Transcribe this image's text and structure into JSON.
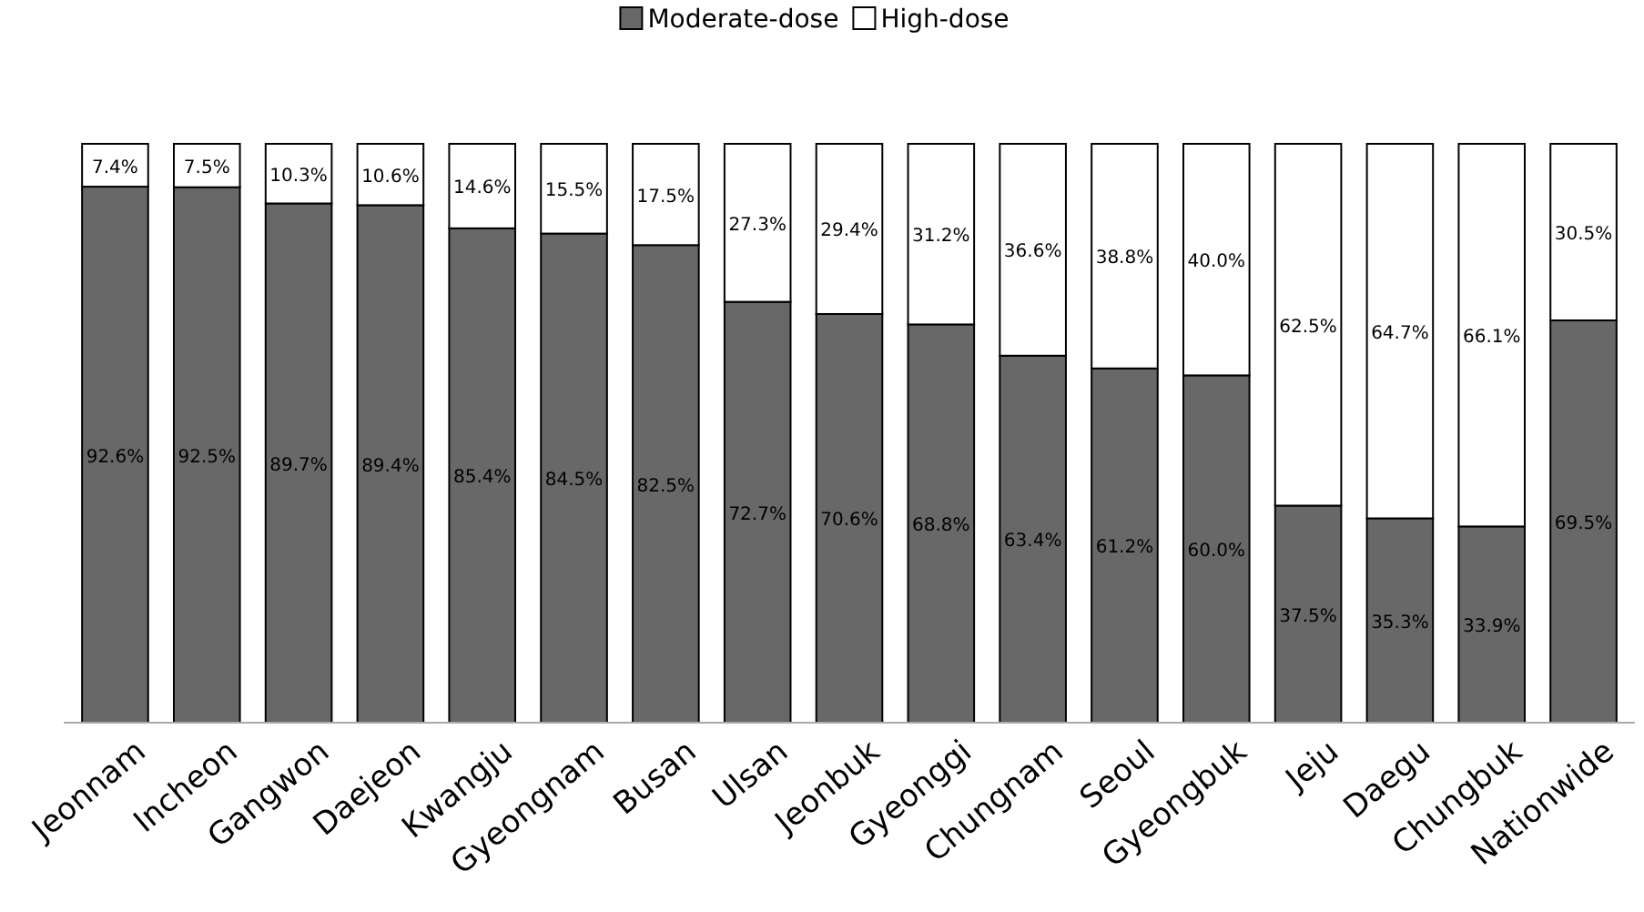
{
  "chart_data": {
    "type": "bar",
    "stacked": true,
    "legend": "top",
    "ylim": [
      0,
      100
    ],
    "tick_labels": "x",
    "categories": [
      "Jeonnam",
      "Incheon",
      "Gangwon",
      "Daejeon",
      "Kwangju",
      "Gyeongnam",
      "Busan",
      "Ulsan",
      "Jeonbuk",
      "Gyeonggi",
      "Chungnam",
      "Seoul",
      "Gyeongbuk",
      "Jeju",
      "Daegu",
      "Chungbuk",
      "Nationwide"
    ],
    "series": [
      {
        "name": "Moderate-dose",
        "color": "#686868",
        "values": [
          92.6,
          92.5,
          89.7,
          89.4,
          85.4,
          84.5,
          82.5,
          72.7,
          70.6,
          68.8,
          63.4,
          61.2,
          60.0,
          37.5,
          35.3,
          33.9,
          69.5
        ],
        "value_labels": [
          "92.6%",
          "92.5%",
          "89.7%",
          "89.4%",
          "85.4%",
          "84.5%",
          "82.5%",
          "72.7%",
          "70.6%",
          "68.8%",
          "63.4%",
          "61.2%",
          "60.0%",
          "37.5%",
          "35.3%",
          "33.9%",
          "69.5%"
        ]
      },
      {
        "name": "High-dose",
        "color": "#ffffff",
        "values": [
          7.4,
          7.5,
          10.3,
          10.6,
          14.6,
          15.5,
          17.5,
          27.3,
          29.4,
          31.2,
          36.6,
          38.8,
          40.0,
          62.5,
          64.7,
          66.1,
          30.5
        ],
        "value_labels": [
          "7.4%",
          "7.5%",
          "10.3%",
          "10.6%",
          "14.6%",
          "15.5%",
          "17.5%",
          "27.3%",
          "29.4%",
          "31.2%",
          "36.6%",
          "38.8%",
          "40.0%",
          "62.5%",
          "64.7%",
          "66.1%",
          "30.5%"
        ]
      }
    ]
  }
}
